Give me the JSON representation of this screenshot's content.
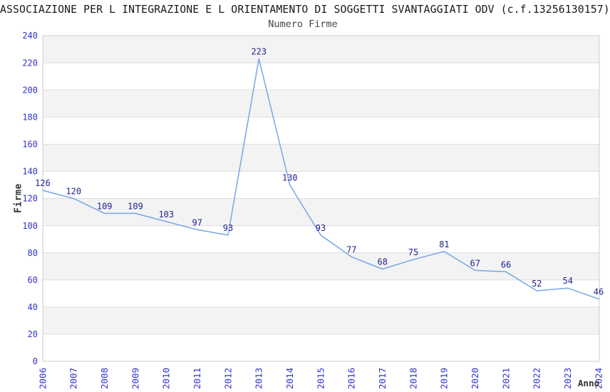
{
  "header": {
    "title": "ASSOCIAZIONE PER L INTEGRAZIONE E L ORIENTAMENTO DI SOGGETTI SVANTAGGIATI ODV (c.f.13256130157)",
    "subtitle": "Numero Firme"
  },
  "chart_data": {
    "type": "line",
    "title": "Numero Firme",
    "xlabel": "Anno",
    "ylabel": "Firme",
    "x": [
      "2006",
      "2007",
      "2008",
      "2009",
      "2010",
      "2011",
      "2012",
      "2013",
      "2014",
      "2015",
      "2016",
      "2017",
      "2018",
      "2019",
      "2020",
      "2021",
      "2022",
      "2023",
      "2024"
    ],
    "values": [
      126,
      120,
      109,
      109,
      103,
      97,
      93,
      223,
      130,
      93,
      77,
      68,
      75,
      81,
      67,
      66,
      52,
      54,
      46
    ],
    "ylim": [
      0,
      240
    ],
    "ytick_step": 20,
    "ytick_labels": [
      "0",
      "20",
      "40",
      "60",
      "80",
      "100",
      "120",
      "140",
      "160",
      "180",
      "200",
      "220",
      "240"
    ],
    "grid": "horizontal",
    "banding": "alternating-horizontal",
    "legend": "none",
    "data_labels_shown": true,
    "colors": {
      "line": "#74a7e8",
      "band": "#f3f3f3",
      "grid": "#dddddd",
      "border": "#cccccc",
      "tick": "#3232cd",
      "label": "#23238f"
    }
  }
}
